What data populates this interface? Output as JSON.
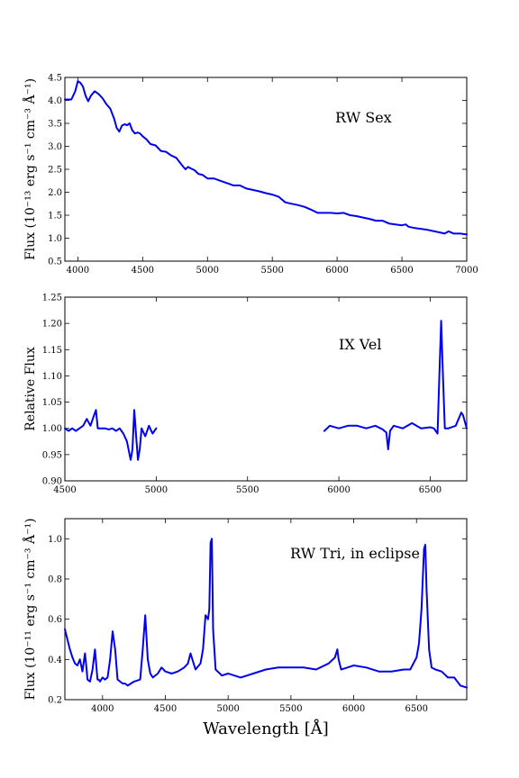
{
  "colors": {
    "line": "#0000ee"
  },
  "chart_data": [
    {
      "type": "line",
      "annotation": "RW Sex",
      "ylabel": "Flux (10⁻¹³ erg s⁻¹ cm⁻³ Å⁻¹)",
      "xlabel": "",
      "xlim": [
        3900,
        7000
      ],
      "ylim": [
        0.5,
        4.5
      ],
      "xticks": [
        4000,
        4500,
        5000,
        5500,
        6000,
        6500,
        7000
      ],
      "yticks": [
        0.5,
        1.0,
        1.5,
        2.0,
        2.5,
        3.0,
        3.5,
        4.0,
        4.5
      ],
      "xtick_labels": [
        "4000",
        "4500",
        "5000",
        "5500",
        "6000",
        "6500",
        "7000"
      ],
      "ytick_labels": [
        "0.5",
        "1.0",
        "1.5",
        "2.0",
        "2.5",
        "3.0",
        "3.5",
        "4.0",
        "4.5"
      ],
      "series": [
        {
          "x": [
            3900,
            3950,
            3980,
            4000,
            4020,
            4040,
            4060,
            4080,
            4100,
            4130,
            4160,
            4190,
            4220,
            4250,
            4280,
            4300,
            4320,
            4340,
            4360,
            4380,
            4400,
            4420,
            4440,
            4460,
            4480,
            4500,
            4530,
            4560,
            4600,
            4640,
            4680,
            4720,
            4760,
            4800,
            4830,
            4850,
            4870,
            4900,
            4930,
            4960,
            5000,
            5050,
            5100,
            5150,
            5200,
            5250,
            5300,
            5350,
            5400,
            5450,
            5500,
            5550,
            5600,
            5650,
            5700,
            5750,
            5800,
            5850,
            5880,
            5900,
            5950,
            6000,
            6050,
            6100,
            6150,
            6200,
            6250,
            6300,
            6350,
            6400,
            6450,
            6500,
            6530,
            6550,
            6600,
            6650,
            6700,
            6750,
            6800,
            6830,
            6860,
            6900,
            6950,
            7000
          ],
          "y": [
            4.02,
            4.02,
            4.2,
            4.42,
            4.38,
            4.3,
            4.1,
            3.98,
            4.1,
            4.2,
            4.14,
            4.05,
            3.92,
            3.82,
            3.6,
            3.4,
            3.32,
            3.45,
            3.48,
            3.46,
            3.5,
            3.35,
            3.28,
            3.3,
            3.28,
            3.22,
            3.15,
            3.05,
            3.02,
            2.9,
            2.88,
            2.8,
            2.75,
            2.6,
            2.5,
            2.55,
            2.52,
            2.48,
            2.4,
            2.38,
            2.3,
            2.3,
            2.25,
            2.2,
            2.15,
            2.15,
            2.08,
            2.05,
            2.02,
            1.98,
            1.95,
            1.9,
            1.78,
            1.75,
            1.72,
            1.68,
            1.62,
            1.55,
            1.55,
            1.55,
            1.55,
            1.54,
            1.55,
            1.5,
            1.48,
            1.45,
            1.42,
            1.38,
            1.38,
            1.32,
            1.3,
            1.28,
            1.3,
            1.25,
            1.22,
            1.2,
            1.18,
            1.15,
            1.12,
            1.1,
            1.15,
            1.1,
            1.1,
            1.08
          ]
        }
      ]
    },
    {
      "type": "line",
      "annotation": "IX Vel",
      "ylabel": "Relative Flux",
      "xlabel": "",
      "xlim": [
        4500,
        6700
      ],
      "ylim": [
        0.9,
        1.25
      ],
      "xticks": [
        4500,
        5000,
        5500,
        6000,
        6500
      ],
      "yticks": [
        0.9,
        0.95,
        1.0,
        1.05,
        1.1,
        1.15,
        1.2,
        1.25
      ],
      "xtick_labels": [
        "4500",
        "5000",
        "5500",
        "6000",
        "6500"
      ],
      "ytick_labels": [
        "0.90",
        "0.95",
        "1.00",
        "1.05",
        "1.10",
        "1.15",
        "1.20",
        "1.25"
      ],
      "series": [
        {
          "x": [
            4500,
            4520,
            4540,
            4560,
            4580,
            4600,
            4620,
            4640,
            4660,
            4670,
            4680,
            4700,
            4720,
            4740,
            4760,
            4780,
            4800,
            4820,
            4840,
            4860,
            4870,
            4880,
            4890,
            4900,
            4910,
            4920,
            4940,
            4960,
            4980,
            5000
          ],
          "y": [
            1.0,
            0.995,
            1.0,
            0.995,
            1.0,
            1.005,
            1.018,
            1.005,
            1.025,
            1.035,
            1.0,
            1.0,
            1.0,
            0.998,
            1.0,
            0.995,
            1.0,
            0.99,
            0.975,
            0.94,
            0.96,
            1.035,
            0.985,
            0.94,
            0.96,
            1.0,
            0.985,
            1.005,
            0.99,
            1.0
          ]
        },
        {
          "x": [
            5920,
            5950,
            6000,
            6050,
            6100,
            6150,
            6200,
            6240,
            6260,
            6270,
            6280,
            6300,
            6350,
            6400,
            6450,
            6500,
            6520,
            6540,
            6550,
            6560,
            6570,
            6580,
            6600,
            6640,
            6670,
            6680,
            6700
          ],
          "y": [
            0.995,
            1.005,
            1.0,
            1.005,
            1.005,
            1.0,
            1.005,
            0.998,
            0.992,
            0.96,
            0.995,
            1.005,
            1.0,
            1.01,
            1.0,
            1.002,
            1.0,
            0.99,
            1.1,
            1.205,
            1.1,
            1.0,
            1.0,
            1.005,
            1.03,
            1.025,
            1.0
          ]
        }
      ]
    },
    {
      "type": "line",
      "annotation": "RW Tri, in eclipse",
      "ylabel": "Flux (10⁻¹¹ erg s⁻¹ cm⁻³ Å⁻¹)",
      "xlabel": "Wavelength [Å]",
      "xlim": [
        3700,
        6900
      ],
      "ylim": [
        0.2,
        1.1
      ],
      "xticks": [
        4000,
        4500,
        5000,
        5500,
        6000,
        6500
      ],
      "yticks": [
        0.2,
        0.4,
        0.6,
        0.8,
        1.0
      ],
      "xtick_labels": [
        "4000",
        "4500",
        "5000",
        "5500",
        "6000",
        "6500"
      ],
      "ytick_labels": [
        "0.2",
        "0.4",
        "0.6",
        "0.8",
        "1.0"
      ],
      "series": [
        {
          "x": [
            3700,
            3720,
            3740,
            3760,
            3780,
            3800,
            3820,
            3840,
            3860,
            3870,
            3880,
            3900,
            3920,
            3940,
            3960,
            3970,
            3980,
            4000,
            4020,
            4040,
            4060,
            4080,
            4100,
            4120,
            4140,
            4160,
            4180,
            4200,
            4250,
            4300,
            4320,
            4340,
            4360,
            4380,
            4400,
            4440,
            4470,
            4500,
            4550,
            4600,
            4650,
            4680,
            4700,
            4740,
            4780,
            4800,
            4820,
            4840,
            4850,
            4860,
            4870,
            4880,
            4900,
            4950,
            5000,
            5100,
            5200,
            5300,
            5400,
            5500,
            5600,
            5700,
            5800,
            5850,
            5870,
            5880,
            5900,
            5950,
            6000,
            6100,
            6200,
            6300,
            6400,
            6450,
            6500,
            6520,
            6540,
            6560,
            6570,
            6580,
            6600,
            6620,
            6650,
            6700,
            6750,
            6800,
            6850,
            6900
          ],
          "y": [
            0.55,
            0.5,
            0.45,
            0.41,
            0.38,
            0.37,
            0.4,
            0.34,
            0.43,
            0.37,
            0.3,
            0.29,
            0.35,
            0.45,
            0.3,
            0.3,
            0.29,
            0.31,
            0.3,
            0.31,
            0.4,
            0.54,
            0.45,
            0.3,
            0.29,
            0.28,
            0.28,
            0.27,
            0.29,
            0.3,
            0.45,
            0.62,
            0.4,
            0.33,
            0.31,
            0.33,
            0.36,
            0.34,
            0.33,
            0.34,
            0.36,
            0.38,
            0.43,
            0.35,
            0.38,
            0.45,
            0.62,
            0.6,
            0.65,
            0.98,
            1.0,
            0.55,
            0.35,
            0.32,
            0.33,
            0.31,
            0.33,
            0.35,
            0.36,
            0.36,
            0.36,
            0.35,
            0.38,
            0.41,
            0.45,
            0.4,
            0.35,
            0.36,
            0.37,
            0.36,
            0.34,
            0.34,
            0.35,
            0.35,
            0.41,
            0.48,
            0.65,
            0.95,
            0.97,
            0.75,
            0.45,
            0.36,
            0.35,
            0.34,
            0.31,
            0.31,
            0.27,
            0.26
          ]
        }
      ]
    }
  ]
}
